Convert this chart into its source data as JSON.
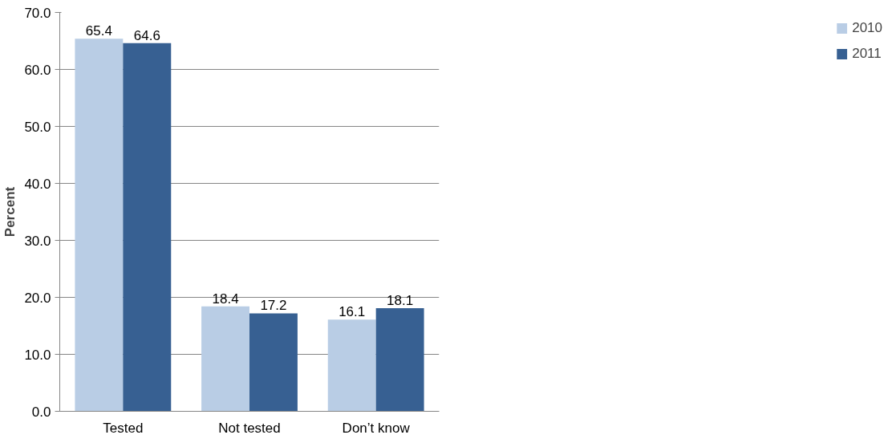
{
  "chart_data": {
    "type": "bar",
    "ylabel": "Percent",
    "categories": [
      "Tested",
      "Not tested",
      "Don’t know"
    ],
    "series": [
      {
        "name": "2010",
        "color": "#b9cde5",
        "values": [
          65.4,
          18.4,
          16.1
        ]
      },
      {
        "name": "2011",
        "color": "#376092",
        "values": [
          64.6,
          17.2,
          18.1
        ]
      }
    ],
    "ylim": [
      0,
      70
    ],
    "yticks": [
      {
        "value": 0,
        "label": "0.0"
      },
      {
        "value": 10,
        "label": "10.0"
      },
      {
        "value": 20,
        "label": "20.0"
      },
      {
        "value": 30,
        "label": "30.0"
      },
      {
        "value": 40,
        "label": "40.0"
      },
      {
        "value": 50,
        "label": "50.0"
      },
      {
        "value": 60,
        "label": "60.0"
      },
      {
        "value": 70,
        "label": "70.0"
      }
    ],
    "grid": "y",
    "legend": "right",
    "data_labels": true
  }
}
